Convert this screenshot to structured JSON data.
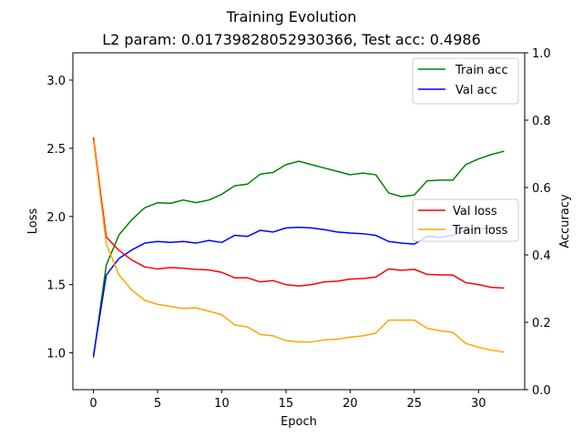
{
  "chart_data": {
    "type": "line",
    "title_line1": "Training Evolution",
    "title_line2": "L2 param: 0.01739828052930366, Test acc: 0.4986",
    "xlabel": "Epoch",
    "ylabel_left": "Loss",
    "ylabel_right": "Accuracy",
    "xlim": [
      -1.6,
      33.6
    ],
    "ylim_left": [
      0.73,
      3.2
    ],
    "ylim_right": [
      0.0,
      1.0
    ],
    "x_ticks": [
      0,
      5,
      10,
      15,
      20,
      25,
      30
    ],
    "x_tick_labels": [
      "0",
      "5",
      "10",
      "15",
      "20",
      "25",
      "30"
    ],
    "y_left_ticks": [
      1.0,
      1.5,
      2.0,
      2.5,
      3.0
    ],
    "y_left_tick_labels": [
      "1.0",
      "1.5",
      "2.0",
      "2.5",
      "3.0"
    ],
    "y_right_ticks": [
      0.0,
      0.2,
      0.4,
      0.6,
      0.8,
      1.0
    ],
    "y_right_tick_labels": [
      "0.0",
      "0.2",
      "0.4",
      "0.6",
      "0.8",
      "1.0"
    ],
    "legend_right_axis": "top-right",
    "legend_left_axis": "center-right",
    "grid": false,
    "x": [
      0,
      1,
      2,
      3,
      4,
      5,
      6,
      7,
      8,
      9,
      10,
      11,
      12,
      13,
      14,
      15,
      16,
      17,
      18,
      19,
      20,
      21,
      22,
      23,
      24,
      25,
      26,
      27,
      28,
      29,
      30,
      31,
      32
    ],
    "series": [
      {
        "name": "Train acc",
        "axis": "right",
        "color": "#008000",
        "values": [
          0.095,
          0.37,
          0.46,
          0.505,
          0.54,
          0.555,
          0.553,
          0.563,
          0.555,
          0.563,
          0.58,
          0.605,
          0.61,
          0.64,
          0.645,
          0.668,
          0.678,
          0.668,
          0.658,
          0.648,
          0.638,
          0.643,
          0.638,
          0.584,
          0.573,
          0.578,
          0.62,
          0.622,
          0.622,
          0.668,
          0.685,
          0.698,
          0.708
        ]
      },
      {
        "name": "Val acc",
        "axis": "right",
        "color": "#0000ff",
        "values": [
          0.1,
          0.34,
          0.39,
          0.415,
          0.435,
          0.44,
          0.437,
          0.44,
          0.435,
          0.443,
          0.437,
          0.458,
          0.455,
          0.473,
          0.468,
          0.48,
          0.482,
          0.48,
          0.475,
          0.468,
          0.465,
          0.463,
          0.458,
          0.44,
          0.435,
          0.432,
          0.455,
          0.452,
          0.458,
          0.473,
          0.478,
          0.48,
          0.482
        ]
      },
      {
        "name": "Val loss",
        "axis": "left",
        "color": "#ff0000",
        "values": [
          2.58,
          1.85,
          1.75,
          1.68,
          1.63,
          1.615,
          1.625,
          1.62,
          1.612,
          1.608,
          1.59,
          1.55,
          1.55,
          1.52,
          1.53,
          1.5,
          1.49,
          1.5,
          1.52,
          1.525,
          1.54,
          1.545,
          1.555,
          1.615,
          1.605,
          1.612,
          1.575,
          1.572,
          1.57,
          1.515,
          1.5,
          1.48,
          1.475
        ]
      },
      {
        "name": "Train loss",
        "axis": "left",
        "color": "#ffa500",
        "values": [
          2.56,
          1.8,
          1.57,
          1.46,
          1.385,
          1.355,
          1.34,
          1.325,
          1.33,
          1.305,
          1.28,
          1.205,
          1.19,
          1.135,
          1.125,
          1.09,
          1.08,
          1.08,
          1.095,
          1.1,
          1.115,
          1.125,
          1.145,
          1.24,
          1.24,
          1.24,
          1.18,
          1.162,
          1.15,
          1.07,
          1.04,
          1.02,
          1.005
        ]
      }
    ]
  }
}
